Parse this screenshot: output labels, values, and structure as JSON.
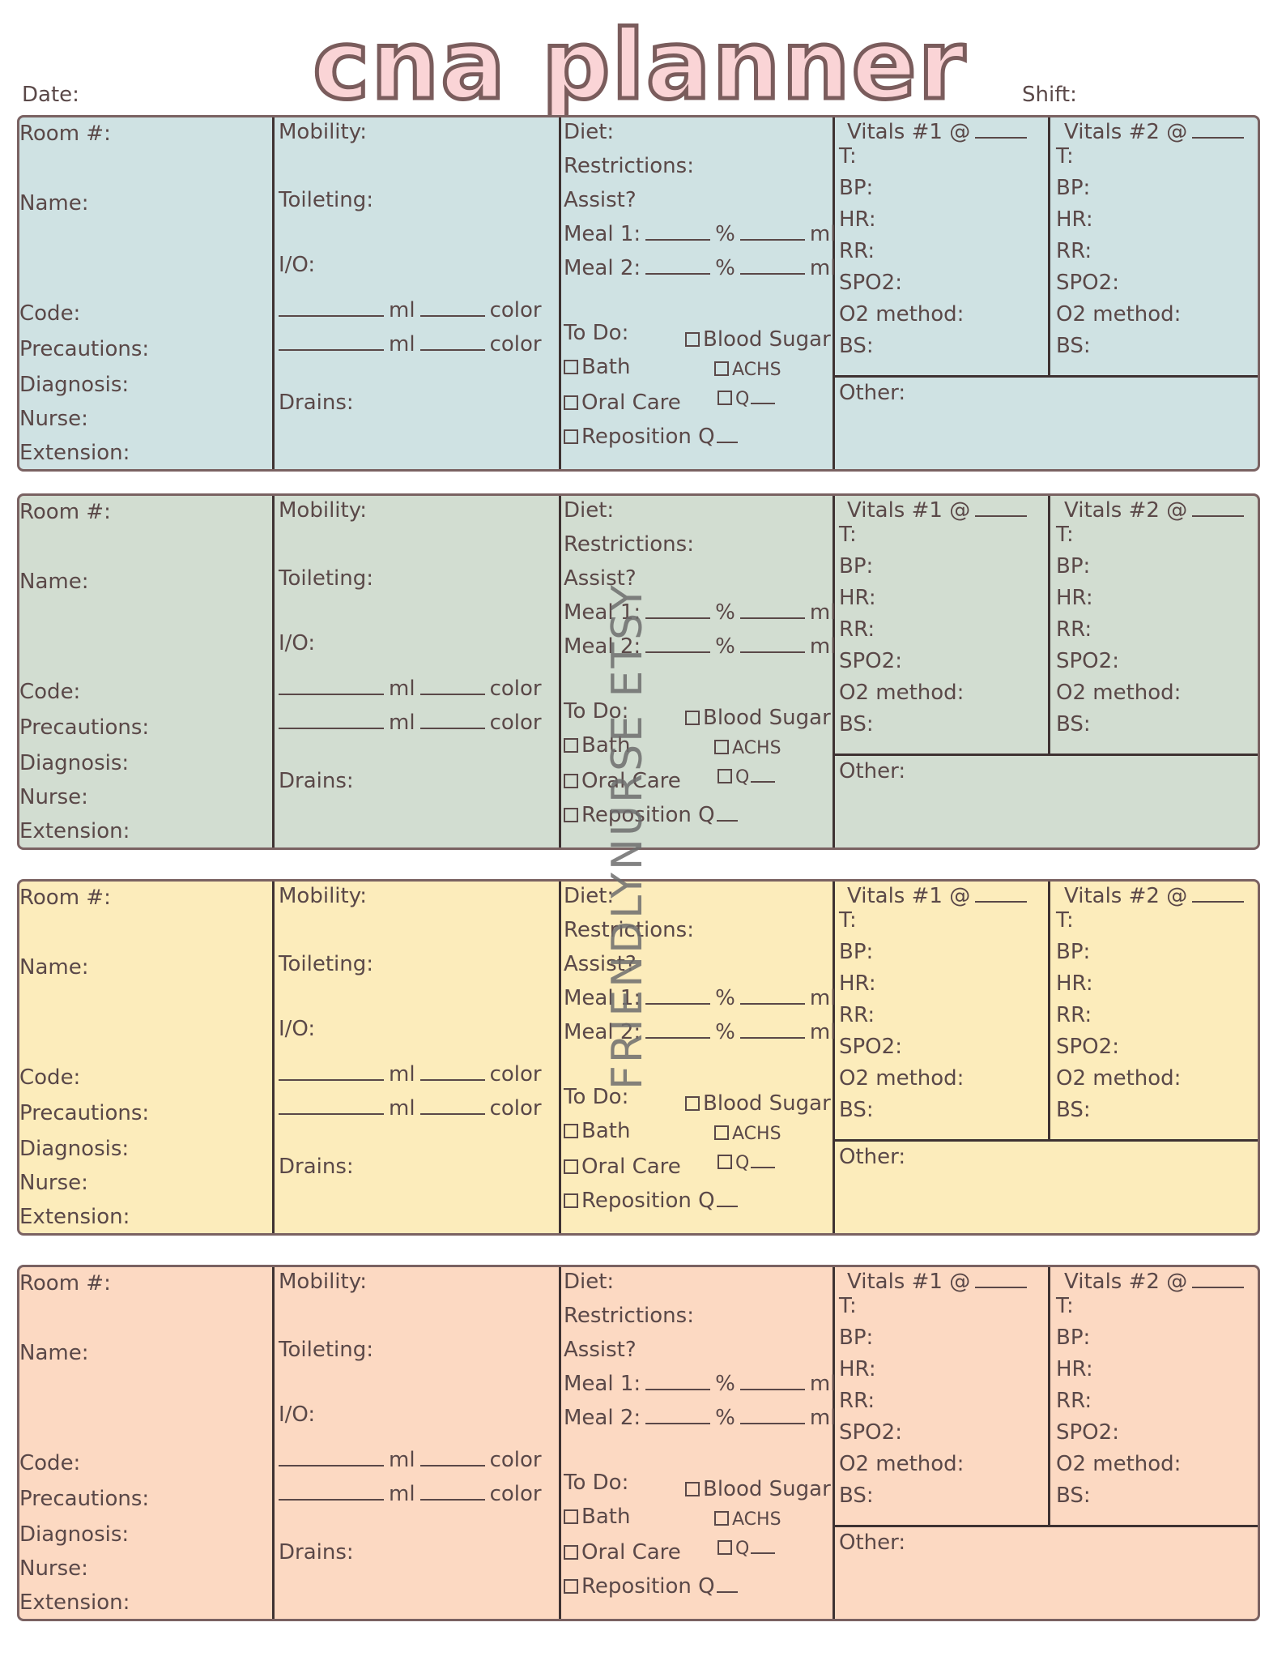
{
  "header": {
    "title": "cna planner",
    "date_label": "Date:",
    "shift_label": "Shift:"
  },
  "watermark": "FRIENDLYNURSE ETSY",
  "block_colors": [
    "#cfe2e3",
    "#d2ddd1",
    "#fcecbb",
    "#fcd9c2"
  ],
  "labels": {
    "patient": [
      "Room #:",
      "Name:",
      "Code:",
      "Precautions:",
      "Diagnosis:",
      "Nurse:",
      "Extension:"
    ],
    "mobility": "Mobility:",
    "toileting": "Toileting:",
    "io": "I/O:",
    "ml": "ml",
    "color": "color",
    "drains": "Drains:",
    "diet": "Diet:",
    "restrictions": "Restrictions:",
    "assist": "Assist?",
    "meal1": "Meal 1:",
    "meal2": "Meal 2:",
    "percent": "%",
    "todo": "To Do:",
    "blood_sugar": "Blood Sugar",
    "achs": "ACHS",
    "q": "Q",
    "bath": "Bath",
    "oral_care": "Oral Care",
    "reposition": "Reposition Q",
    "vitals1": "Vitals #1 @",
    "vitals2": "Vitals #2 @",
    "vitals_items": [
      "T:",
      "BP:",
      "HR:",
      "RR:",
      "SPO2:",
      "O2 method:",
      "BS:"
    ],
    "other": "Other:"
  }
}
